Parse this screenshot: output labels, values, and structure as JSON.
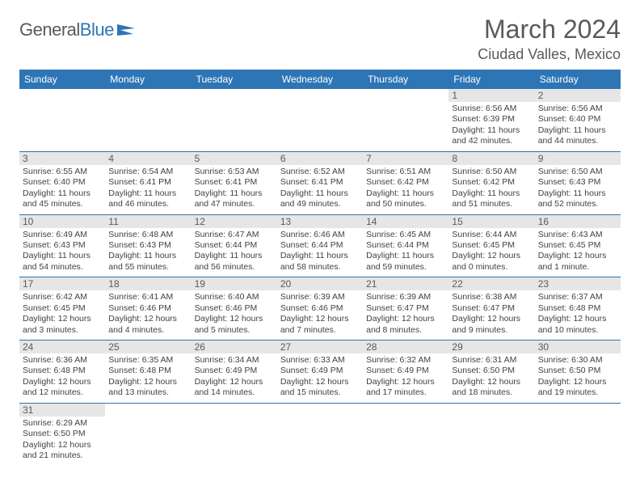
{
  "logo": {
    "name": "General",
    "accent": "Blue"
  },
  "title": "March 2024",
  "location": "Ciudad Valles, Mexico",
  "colors": {
    "header_bg": "#2e75b6",
    "header_fg": "#ffffff",
    "daynum_bg": "#e6e6e6",
    "border": "#2e75b6",
    "text": "#424242"
  },
  "weekdays": [
    "Sunday",
    "Monday",
    "Tuesday",
    "Wednesday",
    "Thursday",
    "Friday",
    "Saturday"
  ],
  "weeks": [
    [
      {
        "day": null
      },
      {
        "day": null
      },
      {
        "day": null
      },
      {
        "day": null
      },
      {
        "day": null
      },
      {
        "day": 1,
        "sunrise": "Sunrise: 6:56 AM",
        "sunset": "Sunset: 6:39 PM",
        "daylight1": "Daylight: 11 hours",
        "daylight2": "and 42 minutes."
      },
      {
        "day": 2,
        "sunrise": "Sunrise: 6:56 AM",
        "sunset": "Sunset: 6:40 PM",
        "daylight1": "Daylight: 11 hours",
        "daylight2": "and 44 minutes."
      }
    ],
    [
      {
        "day": 3,
        "sunrise": "Sunrise: 6:55 AM",
        "sunset": "Sunset: 6:40 PM",
        "daylight1": "Daylight: 11 hours",
        "daylight2": "and 45 minutes."
      },
      {
        "day": 4,
        "sunrise": "Sunrise: 6:54 AM",
        "sunset": "Sunset: 6:41 PM",
        "daylight1": "Daylight: 11 hours",
        "daylight2": "and 46 minutes."
      },
      {
        "day": 5,
        "sunrise": "Sunrise: 6:53 AM",
        "sunset": "Sunset: 6:41 PM",
        "daylight1": "Daylight: 11 hours",
        "daylight2": "and 47 minutes."
      },
      {
        "day": 6,
        "sunrise": "Sunrise: 6:52 AM",
        "sunset": "Sunset: 6:41 PM",
        "daylight1": "Daylight: 11 hours",
        "daylight2": "and 49 minutes."
      },
      {
        "day": 7,
        "sunrise": "Sunrise: 6:51 AM",
        "sunset": "Sunset: 6:42 PM",
        "daylight1": "Daylight: 11 hours",
        "daylight2": "and 50 minutes."
      },
      {
        "day": 8,
        "sunrise": "Sunrise: 6:50 AM",
        "sunset": "Sunset: 6:42 PM",
        "daylight1": "Daylight: 11 hours",
        "daylight2": "and 51 minutes."
      },
      {
        "day": 9,
        "sunrise": "Sunrise: 6:50 AM",
        "sunset": "Sunset: 6:43 PM",
        "daylight1": "Daylight: 11 hours",
        "daylight2": "and 52 minutes."
      }
    ],
    [
      {
        "day": 10,
        "sunrise": "Sunrise: 6:49 AM",
        "sunset": "Sunset: 6:43 PM",
        "daylight1": "Daylight: 11 hours",
        "daylight2": "and 54 minutes."
      },
      {
        "day": 11,
        "sunrise": "Sunrise: 6:48 AM",
        "sunset": "Sunset: 6:43 PM",
        "daylight1": "Daylight: 11 hours",
        "daylight2": "and 55 minutes."
      },
      {
        "day": 12,
        "sunrise": "Sunrise: 6:47 AM",
        "sunset": "Sunset: 6:44 PM",
        "daylight1": "Daylight: 11 hours",
        "daylight2": "and 56 minutes."
      },
      {
        "day": 13,
        "sunrise": "Sunrise: 6:46 AM",
        "sunset": "Sunset: 6:44 PM",
        "daylight1": "Daylight: 11 hours",
        "daylight2": "and 58 minutes."
      },
      {
        "day": 14,
        "sunrise": "Sunrise: 6:45 AM",
        "sunset": "Sunset: 6:44 PM",
        "daylight1": "Daylight: 11 hours",
        "daylight2": "and 59 minutes."
      },
      {
        "day": 15,
        "sunrise": "Sunrise: 6:44 AM",
        "sunset": "Sunset: 6:45 PM",
        "daylight1": "Daylight: 12 hours",
        "daylight2": "and 0 minutes."
      },
      {
        "day": 16,
        "sunrise": "Sunrise: 6:43 AM",
        "sunset": "Sunset: 6:45 PM",
        "daylight1": "Daylight: 12 hours",
        "daylight2": "and 1 minute."
      }
    ],
    [
      {
        "day": 17,
        "sunrise": "Sunrise: 6:42 AM",
        "sunset": "Sunset: 6:45 PM",
        "daylight1": "Daylight: 12 hours",
        "daylight2": "and 3 minutes."
      },
      {
        "day": 18,
        "sunrise": "Sunrise: 6:41 AM",
        "sunset": "Sunset: 6:46 PM",
        "daylight1": "Daylight: 12 hours",
        "daylight2": "and 4 minutes."
      },
      {
        "day": 19,
        "sunrise": "Sunrise: 6:40 AM",
        "sunset": "Sunset: 6:46 PM",
        "daylight1": "Daylight: 12 hours",
        "daylight2": "and 5 minutes."
      },
      {
        "day": 20,
        "sunrise": "Sunrise: 6:39 AM",
        "sunset": "Sunset: 6:46 PM",
        "daylight1": "Daylight: 12 hours",
        "daylight2": "and 7 minutes."
      },
      {
        "day": 21,
        "sunrise": "Sunrise: 6:39 AM",
        "sunset": "Sunset: 6:47 PM",
        "daylight1": "Daylight: 12 hours",
        "daylight2": "and 8 minutes."
      },
      {
        "day": 22,
        "sunrise": "Sunrise: 6:38 AM",
        "sunset": "Sunset: 6:47 PM",
        "daylight1": "Daylight: 12 hours",
        "daylight2": "and 9 minutes."
      },
      {
        "day": 23,
        "sunrise": "Sunrise: 6:37 AM",
        "sunset": "Sunset: 6:48 PM",
        "daylight1": "Daylight: 12 hours",
        "daylight2": "and 10 minutes."
      }
    ],
    [
      {
        "day": 24,
        "sunrise": "Sunrise: 6:36 AM",
        "sunset": "Sunset: 6:48 PM",
        "daylight1": "Daylight: 12 hours",
        "daylight2": "and 12 minutes."
      },
      {
        "day": 25,
        "sunrise": "Sunrise: 6:35 AM",
        "sunset": "Sunset: 6:48 PM",
        "daylight1": "Daylight: 12 hours",
        "daylight2": "and 13 minutes."
      },
      {
        "day": 26,
        "sunrise": "Sunrise: 6:34 AM",
        "sunset": "Sunset: 6:49 PM",
        "daylight1": "Daylight: 12 hours",
        "daylight2": "and 14 minutes."
      },
      {
        "day": 27,
        "sunrise": "Sunrise: 6:33 AM",
        "sunset": "Sunset: 6:49 PM",
        "daylight1": "Daylight: 12 hours",
        "daylight2": "and 15 minutes."
      },
      {
        "day": 28,
        "sunrise": "Sunrise: 6:32 AM",
        "sunset": "Sunset: 6:49 PM",
        "daylight1": "Daylight: 12 hours",
        "daylight2": "and 17 minutes."
      },
      {
        "day": 29,
        "sunrise": "Sunrise: 6:31 AM",
        "sunset": "Sunset: 6:50 PM",
        "daylight1": "Daylight: 12 hours",
        "daylight2": "and 18 minutes."
      },
      {
        "day": 30,
        "sunrise": "Sunrise: 6:30 AM",
        "sunset": "Sunset: 6:50 PM",
        "daylight1": "Daylight: 12 hours",
        "daylight2": "and 19 minutes."
      }
    ],
    [
      {
        "day": 31,
        "sunrise": "Sunrise: 6:29 AM",
        "sunset": "Sunset: 6:50 PM",
        "daylight1": "Daylight: 12 hours",
        "daylight2": "and 21 minutes."
      },
      {
        "day": null
      },
      {
        "day": null
      },
      {
        "day": null
      },
      {
        "day": null
      },
      {
        "day": null
      },
      {
        "day": null
      }
    ]
  ]
}
